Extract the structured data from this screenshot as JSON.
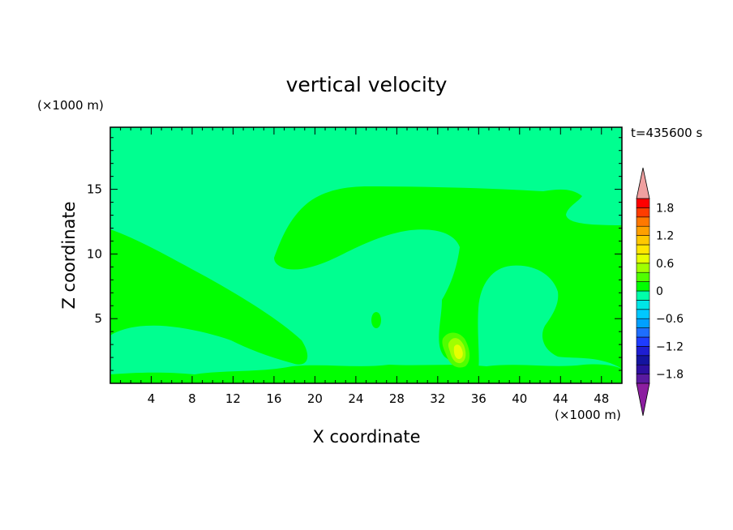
{
  "chart_data": {
    "type": "heatmap",
    "title": "vertical velocity",
    "xlabel": "X coordinate",
    "ylabel": "Z coordinate",
    "x_unit": "(×1000 m)",
    "y_unit": "(×1000 m)",
    "time_label": "t=435600 s",
    "xlim": [
      0,
      50
    ],
    "ylim": [
      0,
      19.8
    ],
    "x_ticks": [
      4,
      8,
      12,
      16,
      20,
      24,
      28,
      32,
      36,
      40,
      44,
      48
    ],
    "y_ticks": [
      5,
      10,
      15
    ],
    "colorbar": {
      "levels": [
        -2.0,
        -1.8,
        -1.6,
        -1.4,
        -1.2,
        -1.0,
        -0.8,
        -0.6,
        -0.4,
        -0.2,
        0,
        0.2,
        0.4,
        0.6,
        0.8,
        1.0,
        1.2,
        1.4,
        1.6,
        1.8,
        2.0
      ],
      "labels": [
        "1.8",
        "1.2",
        "0.6",
        "0",
        "−0.6",
        "−1.2",
        "−1.8"
      ],
      "label_values": [
        1.8,
        1.2,
        0.6,
        0,
        -0.6,
        -1.2,
        -1.8
      ],
      "colors": [
        "#5a1aa0",
        "#2d0fa0",
        "#1414a0",
        "#1e1ed2",
        "#1e3cff",
        "#1e6eff",
        "#00a0ff",
        "#00c8ff",
        "#00e6e6",
        "#00ffaa",
        "#00ff00",
        "#50ff00",
        "#a0ff00",
        "#e6ff00",
        "#ffe600",
        "#ffc800",
        "#ffa000",
        "#ff7800",
        "#ff3c00",
        "#ff0000"
      ],
      "under_color": "#8c1ea0",
      "over_color": "#f0a0a0"
    },
    "regions": [
      {
        "level": "-0.2 to 0",
        "color": "#00ff90",
        "role": "background"
      },
      {
        "level": "0 to 0.2",
        "color": "#00ff00",
        "role": "left lower-half lobe"
      },
      {
        "level": "0 to 0.2",
        "color": "#00ff00",
        "role": "upper central plume"
      },
      {
        "level": "0 to 0.2",
        "color": "#00ff00",
        "role": "right region"
      },
      {
        "level": "0.2 to 0.4",
        "color": "#50ff00",
        "role": "core near x=33"
      },
      {
        "level": "0.4 to 0.6",
        "color": "#a0ff00",
        "role": "core near x=33"
      },
      {
        "level": "0.6 to 0.8",
        "color": "#e6ff00",
        "role": "peak near x=34"
      }
    ]
  }
}
